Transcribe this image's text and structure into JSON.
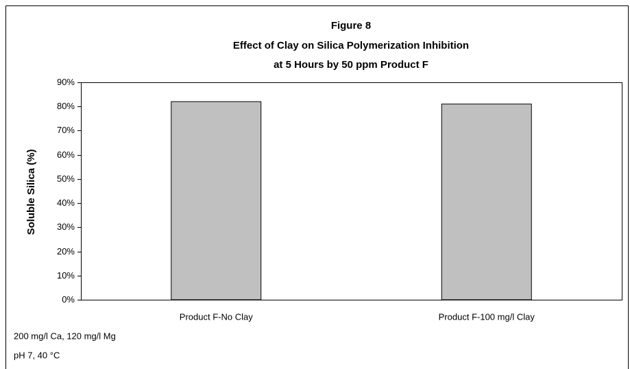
{
  "chart_data": {
    "type": "bar",
    "title": [
      "Figure 8",
      "Effect of Clay on Silica Polymerization Inhibition",
      "at 5 Hours by 50 ppm Product F"
    ],
    "y_label": "Soluble Silica (%)",
    "categories": [
      "Product F-No Clay",
      "Product F-100 mg/l Clay"
    ],
    "values": [
      82,
      81
    ],
    "color": "#c0c0c0",
    "ylim": [
      0,
      90
    ],
    "yticks": [
      {
        "value": 0,
        "label": "0%"
      },
      {
        "value": 10,
        "label": "10%"
      },
      {
        "value": 20,
        "label": "20%"
      },
      {
        "value": 30,
        "label": "30%"
      },
      {
        "value": 40,
        "label": "40%"
      },
      {
        "value": 50,
        "label": "50%"
      },
      {
        "value": 60,
        "label": "60%"
      },
      {
        "value": 70,
        "label": "70%"
      },
      {
        "value": 80,
        "label": "80%"
      },
      {
        "value": 90,
        "label": "90%"
      }
    ],
    "grid": false,
    "notes": [
      "200 mg/l Ca, 120 mg/l Mg",
      "pH 7, 40 °C"
    ]
  }
}
